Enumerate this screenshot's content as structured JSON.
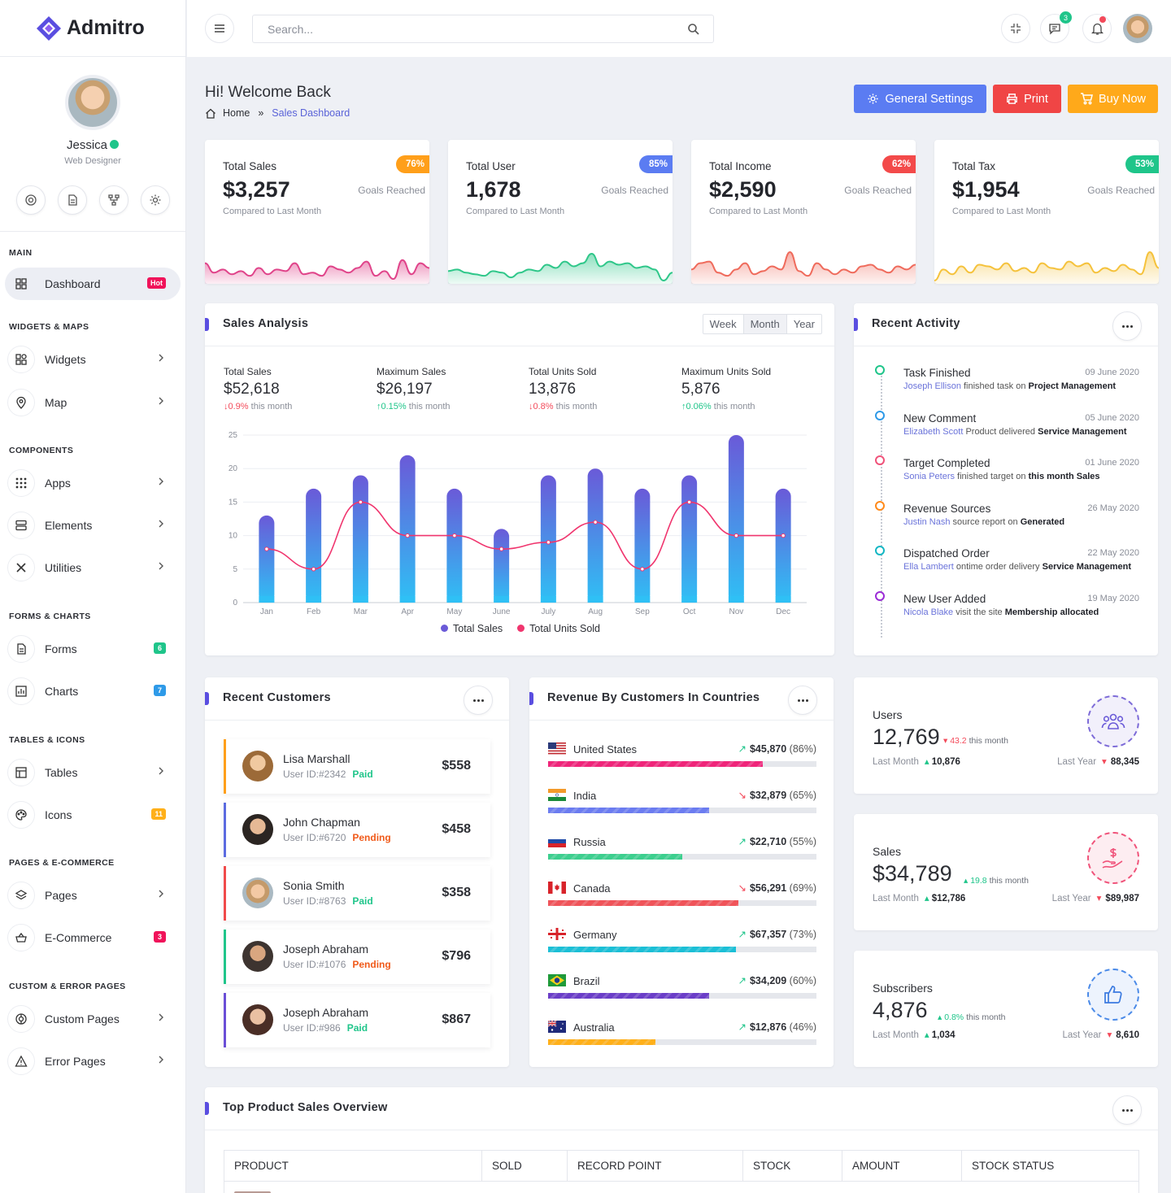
{
  "brand": {
    "name": "Admitro",
    "accent": "#5a4ee0"
  },
  "profile": {
    "name": "Jessica",
    "role": "Web Designer"
  },
  "sidebar": {
    "sections": [
      "MAIN",
      "WIDGETS & MAPS",
      "COMPONENTS",
      "FORMS & CHARTS",
      "TABLES & ICONS",
      "PAGES & E-COMMERCE",
      "CUSTOM & ERROR PAGES"
    ],
    "items": [
      {
        "label": "Dashboard",
        "badge": "Hot"
      },
      {
        "label": "Widgets"
      },
      {
        "label": "Map"
      },
      {
        "label": "Apps"
      },
      {
        "label": "Elements"
      },
      {
        "label": "Utilities"
      },
      {
        "label": "Forms",
        "badge": "6"
      },
      {
        "label": "Charts",
        "badge": "7"
      },
      {
        "label": "Tables"
      },
      {
        "label": "Icons",
        "badge": "11"
      },
      {
        "label": "Pages"
      },
      {
        "label": "E-Commerce",
        "badge": "3"
      },
      {
        "label": "Custom Pages"
      },
      {
        "label": "Error Pages"
      }
    ]
  },
  "topbar": {
    "search_placeholder": "Search...",
    "messages_count": "3"
  },
  "header": {
    "title": "Hi! Welcome Back",
    "crumb_home": "Home",
    "crumb_sep": "»",
    "crumb_current": "Sales Dashboard",
    "btn_settings": "General Settings",
    "btn_print": "Print",
    "btn_buy": "Buy Now"
  },
  "stats": [
    {
      "label": "Total Sales",
      "value": "$3,257",
      "pct": "76%",
      "goal": "Goals Reached",
      "compare": "Compared to Last Month",
      "color": "#ff9f1a",
      "spark": "#e0448a"
    },
    {
      "label": "Total User",
      "value": "1,678",
      "pct": "85%",
      "goal": "Goals Reached",
      "compare": "Compared to Last Month",
      "color": "#5b7cf2",
      "spark": "#2fc78a"
    },
    {
      "label": "Total Income",
      "value": "$2,590",
      "pct": "62%",
      "goal": "Goals Reached",
      "compare": "Compared to Last Month",
      "color": "#f34a4a",
      "spark": "#ef6b5c"
    },
    {
      "label": "Total Tax",
      "value": "$1,954",
      "pct": "53%",
      "goal": "Goals Reached",
      "compare": "Compared to Last Month",
      "color": "#1fc58a",
      "spark": "#f5c23c"
    }
  ],
  "sales": {
    "title": "Sales Analysis",
    "tabs": [
      "Week",
      "Month",
      "Year"
    ],
    "metrics": [
      {
        "label": "Total Sales",
        "value": "$52,618",
        "delta": "0.9%",
        "dir": "down",
        "suffix": "this month"
      },
      {
        "label": "Maximum Sales",
        "value": "$26,197",
        "delta": "0.15%",
        "dir": "up",
        "suffix": "this month"
      },
      {
        "label": "Total Units Sold",
        "value": "13,876",
        "delta": "0.8%",
        "dir": "down",
        "suffix": "this month"
      },
      {
        "label": "Maximum Units Sold",
        "value": "5,876",
        "delta": "0.06%",
        "dir": "up",
        "suffix": "this month"
      }
    ]
  },
  "chart_data": {
    "type": "bar",
    "categories": [
      "Jan",
      "Feb",
      "Mar",
      "Apr",
      "May",
      "June",
      "July",
      "Aug",
      "Sep",
      "Oct",
      "Nov",
      "Dec"
    ],
    "series": [
      {
        "name": "Total Sales",
        "type": "bar",
        "values": [
          13,
          17,
          19,
          22,
          17,
          11,
          19,
          20,
          17,
          19,
          25,
          17
        ]
      },
      {
        "name": "Total Units Sold",
        "type": "line",
        "values": [
          8,
          5,
          15,
          10,
          10,
          8,
          9,
          12,
          5,
          15,
          10,
          10
        ]
      }
    ],
    "yticks": [
      0,
      5,
      10,
      15,
      20,
      25
    ],
    "ylim": [
      0,
      25
    ],
    "colors": {
      "bar_top": "#6a5ad8",
      "bar_bottom": "#2fc0f5",
      "line": "#f0356e"
    },
    "legend": "bottom"
  },
  "activity": {
    "title": "Recent Activity",
    "items": [
      {
        "title": "Task Finished",
        "date": "09 June 2020",
        "who": "Joseph Ellison",
        "mid": "finished task on",
        "what": "Project Management",
        "color": "#1fc58a"
      },
      {
        "title": "New Comment",
        "date": "05 June 2020",
        "who": "Elizabeth Scott",
        "mid": "Product delivered",
        "what": "Service Management",
        "color": "#2e9ae8"
      },
      {
        "title": "Target Completed",
        "date": "01 June 2020",
        "who": "Sonia Peters",
        "mid": "finished target on",
        "what": "this month Sales",
        "color": "#f0537a"
      },
      {
        "title": "Revenue Sources",
        "date": "26 May 2020",
        "who": "Justin Nash",
        "mid": "source report on",
        "what": "Generated",
        "color": "#ff8a1a"
      },
      {
        "title": "Dispatched Order",
        "date": "22 May 2020",
        "who": "Ella Lambert",
        "mid": "ontime order delivery",
        "what": "Service Management",
        "color": "#14b7c4"
      },
      {
        "title": "New User Added",
        "date": "19 May 2020",
        "who": "Nicola Blake",
        "mid": "visit the site",
        "what": "Membership allocated",
        "color": "#9b2bd6"
      }
    ]
  },
  "customers": {
    "title": "Recent Customers",
    "items": [
      {
        "name": "Lisa Marshall",
        "id": "User ID:#2342",
        "status": "Paid",
        "amount": "$558",
        "color": "#ff9f1a"
      },
      {
        "name": "John Chapman",
        "id": "User ID:#6720",
        "status": "Pending",
        "amount": "$458",
        "color": "#5b6be0"
      },
      {
        "name": "Sonia Smith",
        "id": "User ID:#8763",
        "status": "Paid",
        "amount": "$358",
        "color": "#f04a4a"
      },
      {
        "name": "Joseph Abraham",
        "id": "User ID:#1076",
        "status": "Pending",
        "amount": "$796",
        "color": "#1fc58a"
      },
      {
        "name": "Joseph Abraham",
        "id": "User ID:#986",
        "status": "Paid",
        "amount": "$867",
        "color": "#6a4ed6"
      }
    ]
  },
  "countries": {
    "title": "Revenue By Customers In Countries",
    "items": [
      {
        "name": "United States",
        "value": "$45,870",
        "pct": "(86%)",
        "fill": 0.8,
        "color": "#f0257a",
        "trend": "up"
      },
      {
        "name": "India",
        "value": "$32,879",
        "pct": "(65%)",
        "fill": 0.6,
        "color": "#6b7cf0",
        "trend": "down"
      },
      {
        "name": "Russia",
        "value": "$22,710",
        "pct": "(55%)",
        "fill": 0.5,
        "color": "#3ccf8e",
        "trend": "up"
      },
      {
        "name": "Canada",
        "value": "$56,291",
        "pct": "(69%)",
        "fill": 0.71,
        "color": "#f0545a",
        "trend": "down"
      },
      {
        "name": "Germany",
        "value": "$67,357",
        "pct": "(73%)",
        "fill": 0.7,
        "color": "#1bbfd6",
        "trend": "up"
      },
      {
        "name": "Brazil",
        "value": "$34,209",
        "pct": "(60%)",
        "fill": 0.6,
        "color": "#6b3ec8",
        "trend": "up"
      },
      {
        "name": "Australia",
        "value": "$12,876",
        "pct": "(46%)",
        "fill": 0.4,
        "color": "#ffb01a",
        "trend": "up"
      }
    ]
  },
  "minis": [
    {
      "label": "Users",
      "value": "12,769",
      "change": "43.2",
      "change_suffix": "this month",
      "dir": "down",
      "last_month_label": "Last Month",
      "last_month": "10,876",
      "lm_dir": "up",
      "last_year_label": "Last Year",
      "last_year": "88,345",
      "ly_dir": "down",
      "icon": "users-icon",
      "color": "#7d6bd8"
    },
    {
      "label": "Sales",
      "value": "$34,789",
      "change": "19.8",
      "change_suffix": "this month",
      "dir": "up",
      "last_month_label": "Last Month",
      "last_month": "$12,786",
      "lm_dir": "up",
      "last_year_label": "Last Year",
      "last_year": "$89,987",
      "ly_dir": "down",
      "icon": "money-hand-icon",
      "color": "#f0537a"
    },
    {
      "label": "Subscribers",
      "value": "4,876",
      "change": "0.8%",
      "change_suffix": "this month",
      "dir": "up",
      "last_month_label": "Last Month",
      "last_month": "1,034",
      "lm_dir": "up",
      "last_year_label": "Last Year",
      "last_year": "8,610",
      "ly_dir": "down",
      "icon": "thumbs-up-icon",
      "color": "#4a8ae8"
    }
  ],
  "products": {
    "title": "Top Product Sales Overview",
    "columns": [
      "PRODUCT",
      "SOLD",
      "RECORD POINT",
      "STOCK",
      "AMOUNT",
      "STOCK STATUS"
    ]
  }
}
